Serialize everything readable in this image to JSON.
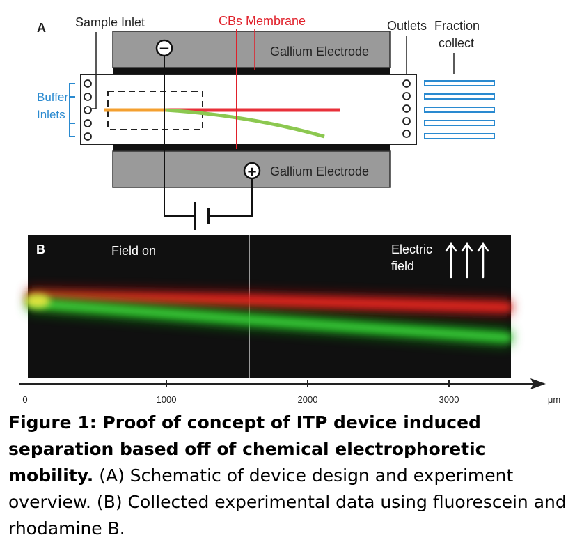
{
  "panel_a": {
    "letter": "A",
    "sample_inlet": "Sample Inlet",
    "membrane": "CBs Membrane",
    "outlets": "Outlets",
    "fraction_collect_line1": "Fraction",
    "fraction_collect_line2": "collect",
    "buffer_inlets_line1": "Buffer",
    "buffer_inlets_line2": "Inlets",
    "top_electrode": "Gallium Electrode",
    "bottom_electrode": "Gallium Electrode",
    "negative_sign": "−",
    "positive_sign": "+"
  },
  "panel_b": {
    "letter": "B",
    "field_on": "Field on",
    "electric_field_line1": "Electric",
    "electric_field_line2": "field",
    "axis_ticks": [
      "0",
      "1000",
      "2000",
      "3000"
    ],
    "axis_unit": "μm"
  },
  "caption": {
    "bold": "Figure 1: Proof of concept of ITP device induced separation based off of chemical electrophoretic mobility.",
    "text": " (A) Schematic of device design and experiment overview. (B) Collected experimental data using fluorescein and rhodamine B."
  },
  "colors": {
    "membrane_red": "#e0202a",
    "buffer_blue": "#2a8ad0",
    "orange_stream": "#f4a030",
    "red_stream": "#e8303a",
    "green_stream": "#8cc850",
    "electrode_gray": "#9a9a9a"
  }
}
